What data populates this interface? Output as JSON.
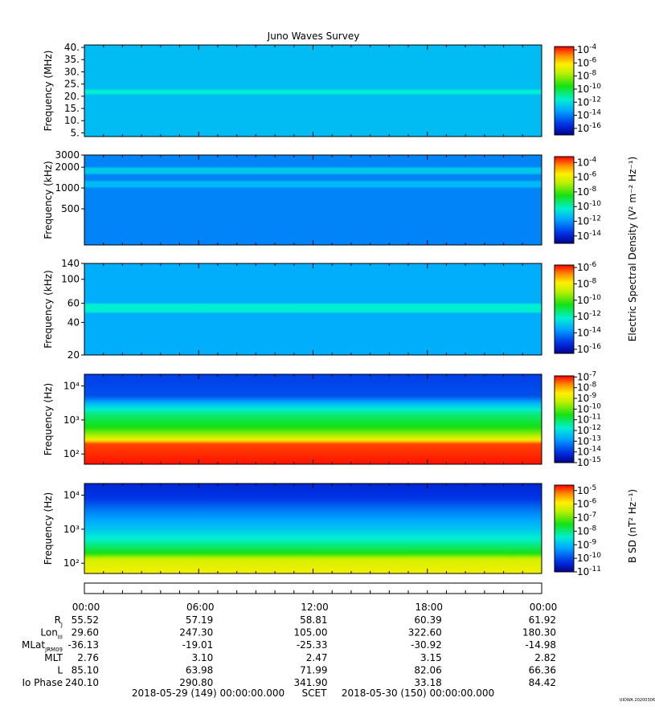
{
  "title": "Juno Waves Survey",
  "footer": {
    "start": "2018-05-29 (149) 00:00:00.000",
    "scet": "SCET",
    "end": "2018-05-30 (150) 00:00:00.000",
    "stamp": "UIOWA 20200306"
  },
  "time_ticks": [
    "00:00",
    "06:00",
    "12:00",
    "18:00",
    "00:00"
  ],
  "ephemeris": [
    {
      "label": "R",
      "sub": "J",
      "values": [
        "55.52",
        "57.19",
        "58.81",
        "60.39",
        "61.92"
      ]
    },
    {
      "label": "Lon",
      "sub": "III",
      "values": [
        "29.60",
        "247.30",
        "105.00",
        "322.60",
        "180.30"
      ]
    },
    {
      "label": "MLat",
      "sub": "JRM09",
      "values": [
        "-36.13",
        "-19.01",
        "-25.33",
        "-30.92",
        "-14.98"
      ]
    },
    {
      "label": "MLT",
      "sub": "",
      "values": [
        "2.76",
        "3.10",
        "2.47",
        "3.15",
        "2.82"
      ]
    },
    {
      "label": "L",
      "sub": "",
      "values": [
        "85.10",
        "63.98",
        "71.99",
        "82.06",
        "66.36"
      ]
    },
    {
      "label": "Io Phase",
      "sub": "",
      "values": [
        "240.10",
        "290.80",
        "341.90",
        "33.18",
        "84.42"
      ]
    }
  ],
  "colorbar_labels": {
    "electric": "Electric Spectral Density (V² m⁻² Hz⁻¹)",
    "magnetic": "B SD (nT² Hz⁻¹)"
  },
  "chart_data": [
    {
      "type": "heatmap",
      "ylabel": "Frequency (MHz)",
      "yscale": "linear",
      "ylim": [
        3.5,
        41
      ],
      "yticks": [
        "5.",
        "10.",
        "15.",
        "20.",
        "25.",
        "30.",
        "35.",
        "40."
      ],
      "ytick_values": [
        5,
        10,
        15,
        20,
        25,
        30,
        35,
        40
      ],
      "colorbar": {
        "exponents": [
          -4,
          -6,
          -8,
          -10,
          -12,
          -14,
          -16
        ],
        "range": [
          -17,
          -3.5
        ]
      },
      "spectrum": {
        "base": -12.8,
        "features": [
          {
            "freq": 21.5,
            "level": -11.6,
            "width": 0.9
          }
        ]
      }
    },
    {
      "type": "heatmap",
      "ylabel": "Frequency (kHz)",
      "yscale": "log",
      "ylim": [
        150,
        3000
      ],
      "yticks": [
        "500",
        "1000",
        "2000",
        "3000"
      ],
      "ytick_values": [
        500,
        1000,
        2000,
        3000
      ],
      "colorbar": {
        "exponents": [
          -4,
          -6,
          -8,
          -10,
          -12,
          -14
        ],
        "range": [
          -15,
          -3.2
        ]
      },
      "spectrum": {
        "base": -12.3,
        "features": [
          {
            "freq": 1750,
            "level": -11.1,
            "width": 0.05
          },
          {
            "freq": 1150,
            "level": -11.4,
            "width": 0.05
          }
        ]
      }
    },
    {
      "type": "heatmap",
      "ylabel": "Frequency (kHz)",
      "yscale": "log",
      "ylim": [
        20,
        140
      ],
      "yticks": [
        "20",
        "40",
        "60",
        "100",
        "140"
      ],
      "ytick_values": [
        20,
        40,
        60,
        100,
        140
      ],
      "colorbar": {
        "exponents": [
          -6,
          -8,
          -10,
          -12,
          -14,
          -16
        ],
        "range": [
          -16.5,
          -5.7
        ]
      },
      "spectrum": {
        "base": -13.4,
        "features": [
          {
            "freq": 55,
            "level": -12.2,
            "width": 0.04
          }
        ]
      }
    },
    {
      "type": "heatmap",
      "ylabel": "Frequency (Hz)",
      "yscale": "log",
      "ylim": [
        50,
        22000
      ],
      "yticks": [
        "10²",
        "10³",
        "10⁴"
      ],
      "ytick_values": [
        100,
        1000,
        10000
      ],
      "colorbar": {
        "exponents": [
          -7,
          -8,
          -9,
          -10,
          -11,
          -12,
          -13,
          -14,
          -15
        ],
        "range": [
          -15,
          -6.9
        ]
      },
      "spectrum": {
        "profile": [
          [
            50,
            -7.0
          ],
          [
            200,
            -7.3
          ],
          [
            280,
            -9.0
          ],
          [
            600,
            -10.5
          ],
          [
            1500,
            -11.2
          ],
          [
            3000,
            -12.5
          ],
          [
            5000,
            -13.7
          ],
          [
            22000,
            -13.9
          ]
        ]
      }
    },
    {
      "type": "heatmap",
      "ylabel": "Frequency (Hz)",
      "yscale": "log",
      "ylim": [
        50,
        22000
      ],
      "yticks": [
        "10²",
        "10³",
        "10⁴"
      ],
      "ytick_values": [
        100,
        1000,
        10000
      ],
      "colorbar": {
        "exponents": [
          -5,
          -6,
          -7,
          -8,
          -9,
          -10,
          -11
        ],
        "range": [
          -11,
          -4.6
        ]
      },
      "spectrum": {
        "profile": [
          [
            50,
            -6.0
          ],
          [
            130,
            -6.3
          ],
          [
            200,
            -7.5
          ],
          [
            500,
            -8.4
          ],
          [
            1000,
            -8.9
          ],
          [
            3000,
            -9.5
          ],
          [
            8000,
            -10.2
          ],
          [
            22000,
            -10.4
          ]
        ]
      }
    }
  ]
}
